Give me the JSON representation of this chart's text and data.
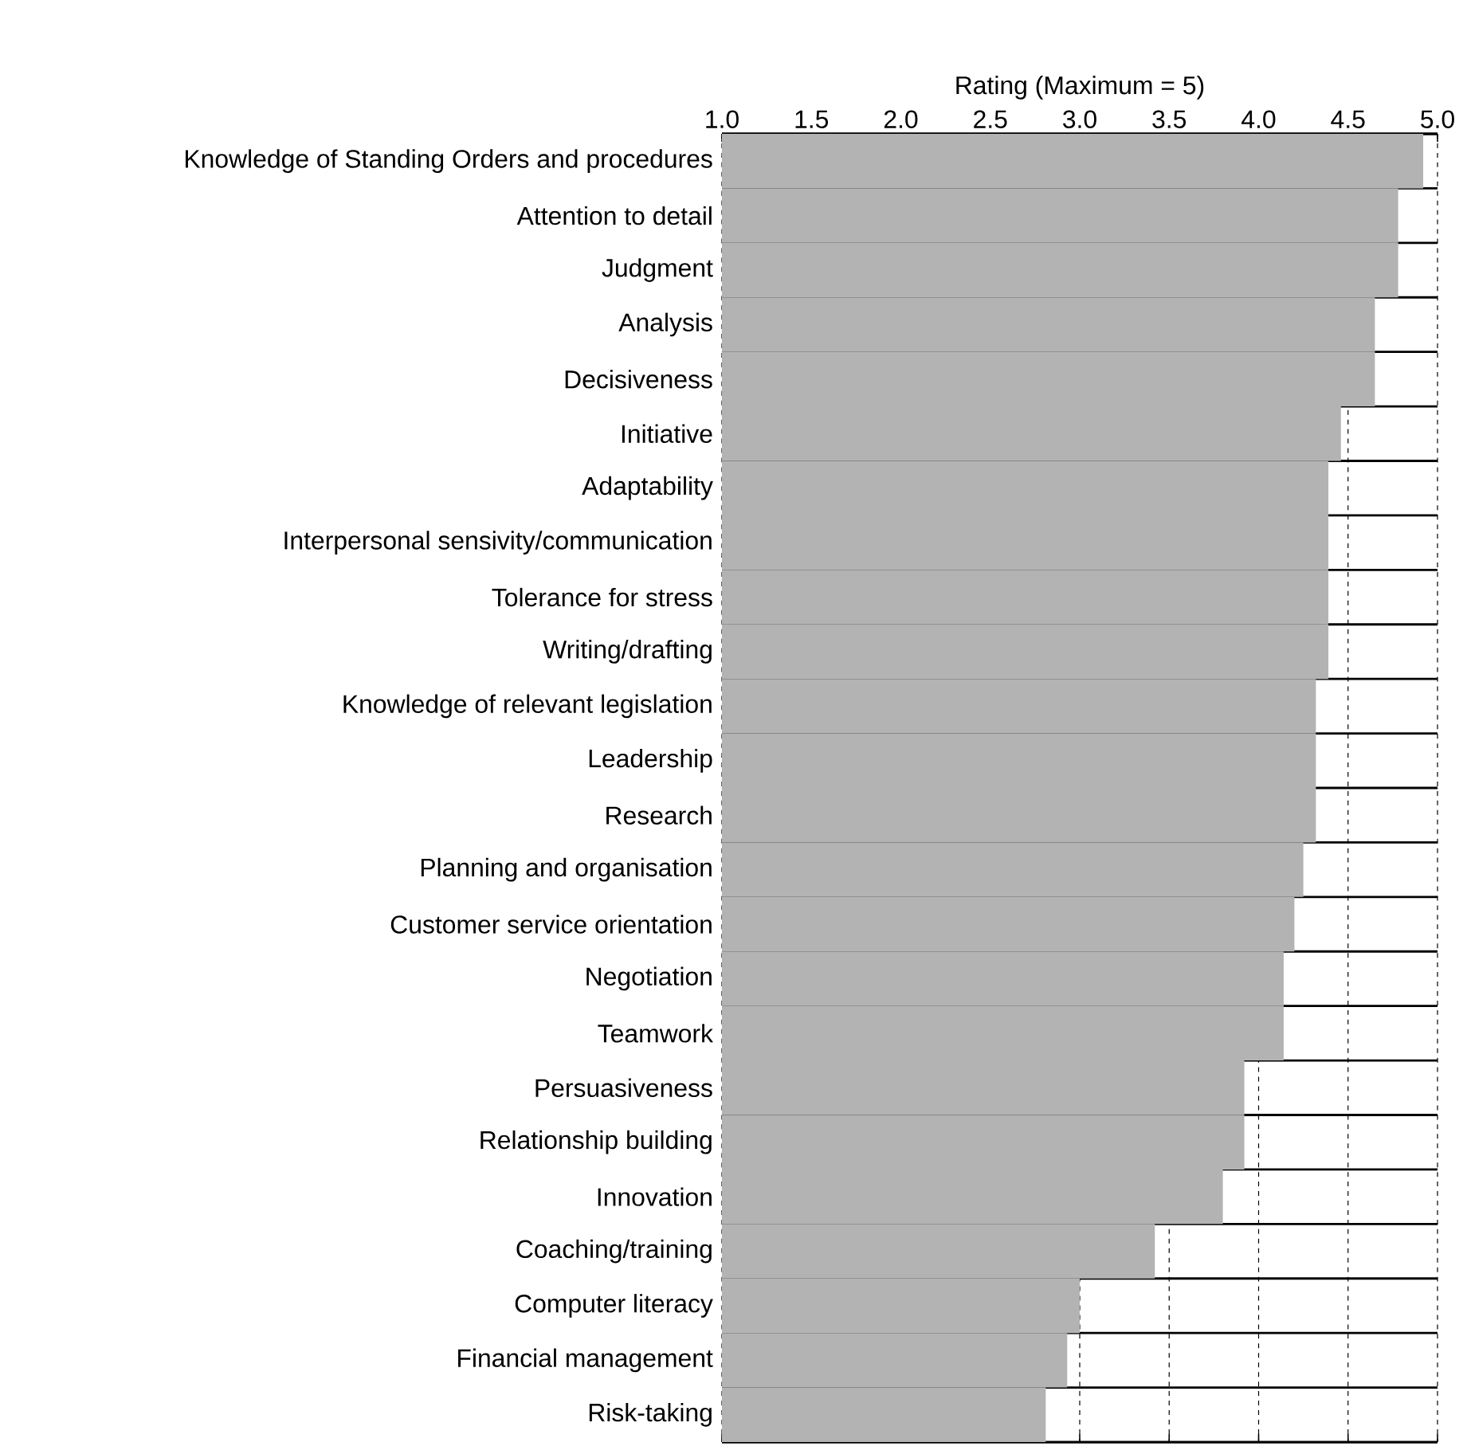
{
  "chart_data": {
    "type": "bar",
    "orientation": "horizontal",
    "xlabel": "Rating (Maximum = 5)",
    "categories": [
      "Knowledge of Standing Orders and procedures",
      "Attention to detail",
      "Judgment",
      "Analysis",
      "Decisiveness",
      "Initiative",
      "Adaptability",
      "Interpersonal sensivity/communication",
      "Tolerance for stress",
      "Writing/drafting",
      "Knowledge of relevant legislation",
      "Leadership",
      "Research",
      "Planning and organisation",
      "Customer service orientation",
      "Negotiation",
      "Teamwork",
      "Persuasiveness",
      "Relationship building",
      "Innovation",
      "Coaching/training",
      "Computer literacy",
      "Financial management",
      "Risk-taking"
    ],
    "values": [
      4.92,
      4.78,
      4.78,
      4.65,
      4.65,
      4.46,
      4.39,
      4.39,
      4.39,
      4.39,
      4.32,
      4.32,
      4.32,
      4.25,
      4.2,
      4.14,
      4.14,
      3.92,
      3.92,
      3.8,
      3.42,
      3.0,
      2.93,
      2.81
    ],
    "color": "#b3b3b3",
    "xlim": [
      1,
      5
    ],
    "xticks": [
      {
        "value": 1,
        "label": "1.0"
      },
      {
        "value": 1.5,
        "label": "1.5"
      },
      {
        "value": 2,
        "label": "2.0"
      },
      {
        "value": 2.5,
        "label": "2.5"
      },
      {
        "value": 3,
        "label": "3.0"
      },
      {
        "value": 3.5,
        "label": "3.5"
      },
      {
        "value": 4,
        "label": "4.0"
      },
      {
        "value": 4.5,
        "label": "4.5"
      },
      {
        "value": 5,
        "label": "5.0"
      }
    ],
    "grid": "x"
  }
}
